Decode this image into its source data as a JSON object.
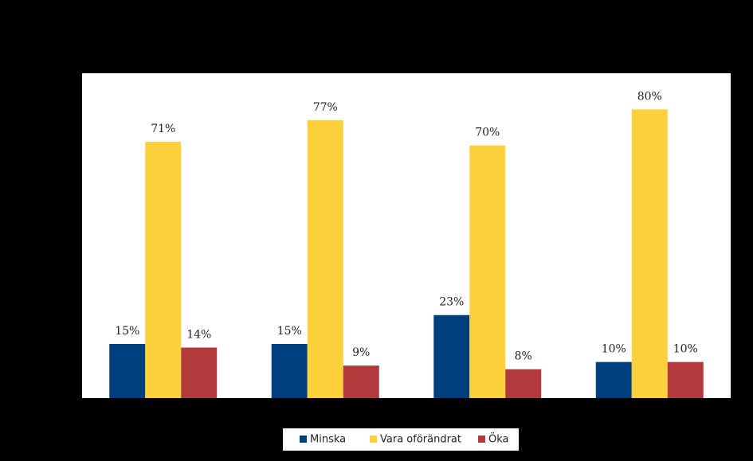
{
  "chart_data": {
    "type": "bar",
    "categories": [
      null,
      null,
      null,
      null
    ],
    "series": [
      {
        "name": "Minska",
        "color": "#003f7d",
        "values": [
          15,
          15,
          23,
          10
        ],
        "value_labels": [
          "15%",
          "15%",
          "23%",
          "10%"
        ]
      },
      {
        "name": "Vara oförändrat",
        "color": "#fdd13c",
        "values": [
          71,
          77,
          70,
          80
        ],
        "value_labels": [
          "71%",
          "77%",
          "70%",
          "80%"
        ]
      },
      {
        "name": "Öka",
        "color": "#b23a3c",
        "values": [
          14,
          9,
          8,
          10
        ],
        "value_labels": [
          "14%",
          "9%",
          "8%",
          "10%"
        ]
      }
    ],
    "ylim": [
      0,
      90
    ],
    "legend": "bottom"
  }
}
